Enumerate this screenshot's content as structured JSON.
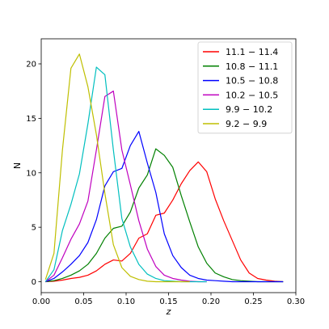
{
  "chart_data": {
    "type": "line",
    "xlabel": "z",
    "ylabel": "N",
    "xlim": [
      0.0,
      0.3
    ],
    "ylim": [
      -1,
      22.3
    ],
    "x_ticks": [
      "0.00",
      "0.05",
      "0.10",
      "0.15",
      "0.20",
      "0.25",
      "0.30"
    ],
    "x_tick_values": [
      0.0,
      0.05,
      0.1,
      0.15,
      0.2,
      0.25,
      0.3
    ],
    "y_ticks": [
      "0",
      "5",
      "10",
      "15",
      "20"
    ],
    "y_tick_values": [
      0,
      5,
      10,
      15,
      20
    ],
    "legend_position": "top-right",
    "series": [
      {
        "name": "11.1 − 11.4",
        "color": "#ff0000",
        "x": [
          0.005,
          0.015,
          0.025,
          0.035,
          0.045,
          0.055,
          0.065,
          0.075,
          0.085,
          0.095,
          0.105,
          0.115,
          0.125,
          0.135,
          0.145,
          0.155,
          0.165,
          0.175,
          0.185,
          0.195,
          0.205,
          0.215,
          0.225,
          0.235,
          0.245,
          0.255,
          0.265,
          0.275,
          0.285
        ],
        "y": [
          0.0,
          0.05,
          0.15,
          0.3,
          0.4,
          0.6,
          1.0,
          1.6,
          2.0,
          1.9,
          2.6,
          4.0,
          4.4,
          6.1,
          6.3,
          7.5,
          9.0,
          10.2,
          11.0,
          10.1,
          7.6,
          5.6,
          3.8,
          2.0,
          0.8,
          0.3,
          0.15,
          0.05,
          0.0
        ]
      },
      {
        "name": "10.8 − 11.1",
        "color": "#008000",
        "x": [
          0.005,
          0.015,
          0.025,
          0.035,
          0.045,
          0.055,
          0.065,
          0.075,
          0.085,
          0.095,
          0.105,
          0.115,
          0.125,
          0.135,
          0.145,
          0.155,
          0.165,
          0.175,
          0.185,
          0.195,
          0.205,
          0.215,
          0.225,
          0.235,
          0.245,
          0.255,
          0.265,
          0.275,
          0.285
        ],
        "y": [
          0.0,
          0.1,
          0.3,
          0.6,
          1.0,
          1.6,
          2.6,
          4.0,
          4.9,
          5.1,
          6.4,
          8.6,
          9.8,
          12.2,
          11.6,
          10.5,
          7.9,
          5.5,
          3.2,
          1.7,
          0.8,
          0.45,
          0.2,
          0.1,
          0.05,
          0.0,
          0.0,
          0.0,
          0.0
        ]
      },
      {
        "name": "10.5 − 10.8",
        "color": "#0000ff",
        "x": [
          0.005,
          0.015,
          0.025,
          0.035,
          0.045,
          0.055,
          0.065,
          0.075,
          0.085,
          0.095,
          0.105,
          0.115,
          0.125,
          0.135,
          0.145,
          0.155,
          0.165,
          0.175,
          0.185,
          0.195,
          0.205,
          0.215,
          0.225,
          0.235,
          0.245,
          0.255,
          0.265,
          0.275,
          0.285
        ],
        "y": [
          0.0,
          0.3,
          0.9,
          1.6,
          2.4,
          3.6,
          5.7,
          8.8,
          10.1,
          10.4,
          12.5,
          13.8,
          10.9,
          8.2,
          4.4,
          2.4,
          1.3,
          0.6,
          0.3,
          0.15,
          0.1,
          0.05,
          0.0,
          0.0,
          0.0,
          0.0,
          0.0,
          0.0,
          0.0
        ]
      },
      {
        "name": "10.2 − 10.5",
        "color": "#bf00bf",
        "x": [
          0.005,
          0.015,
          0.025,
          0.035,
          0.045,
          0.055,
          0.065,
          0.075,
          0.085,
          0.095,
          0.105,
          0.115,
          0.125,
          0.135,
          0.145,
          0.155,
          0.165,
          0.175,
          0.185,
          0.195
        ],
        "y": [
          0.0,
          0.6,
          2.2,
          3.9,
          5.3,
          7.4,
          12.1,
          17.0,
          17.5,
          12.1,
          8.9,
          5.6,
          3.0,
          1.4,
          0.6,
          0.3,
          0.15,
          0.05,
          0.0,
          0.0
        ]
      },
      {
        "name": "9.9 − 10.2",
        "color": "#00bfbf",
        "x": [
          0.005,
          0.015,
          0.025,
          0.035,
          0.045,
          0.055,
          0.065,
          0.075,
          0.085,
          0.095,
          0.105,
          0.115,
          0.125,
          0.135,
          0.145,
          0.155,
          0.165,
          0.175,
          0.185,
          0.195
        ],
        "y": [
          0.0,
          1.1,
          4.7,
          7.1,
          9.9,
          14.5,
          19.7,
          19.0,
          12.1,
          5.8,
          3.2,
          1.6,
          0.7,
          0.3,
          0.1,
          0.05,
          0.0,
          0.0,
          0.0,
          0.0
        ]
      },
      {
        "name": "9.2 − 9.9",
        "color": "#bfbf00",
        "x": [
          0.005,
          0.015,
          0.025,
          0.035,
          0.045,
          0.055,
          0.065,
          0.075,
          0.085,
          0.095,
          0.105,
          0.115,
          0.125,
          0.135,
          0.145,
          0.155,
          0.165,
          0.175
        ],
        "y": [
          0.2,
          2.6,
          12.1,
          19.6,
          20.9,
          17.9,
          13.5,
          8.1,
          3.4,
          1.3,
          0.5,
          0.2,
          0.05,
          0.0,
          0.0,
          0.0,
          0.0,
          0.0
        ]
      }
    ]
  }
}
